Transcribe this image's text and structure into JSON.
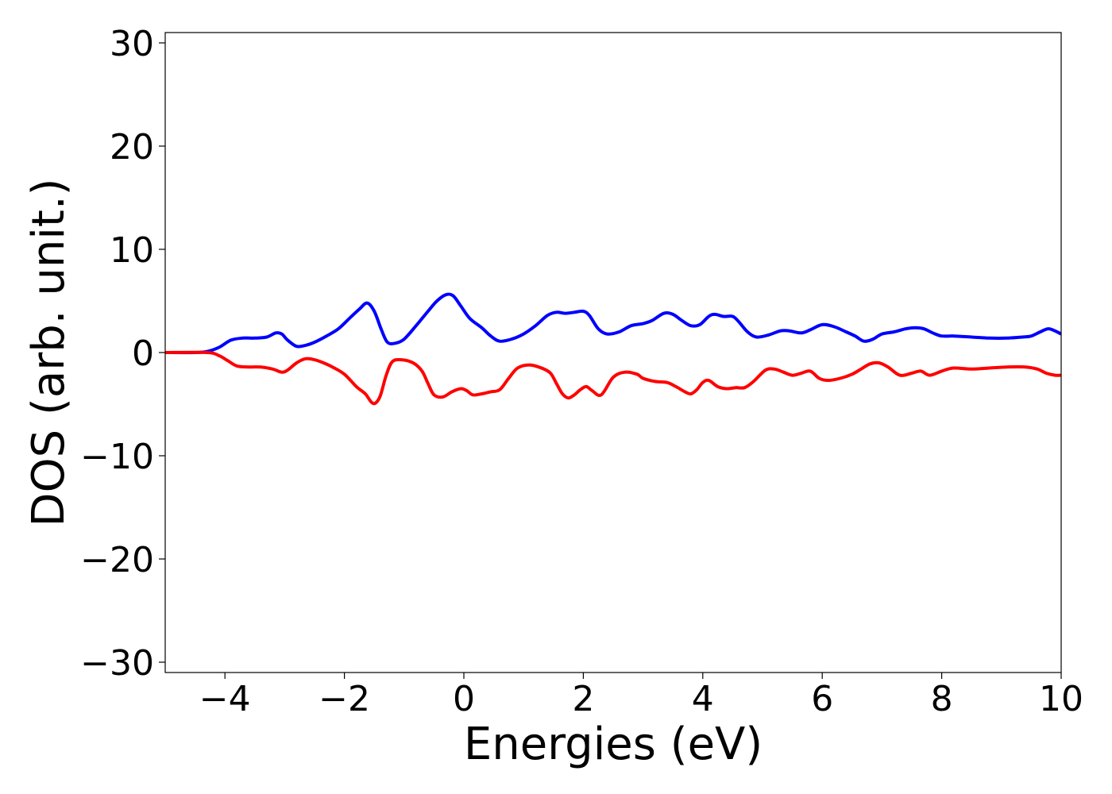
{
  "chart_data": {
    "type": "line",
    "title": "",
    "xlabel": "Energies (eV)",
    "ylabel": "DOS (arb. unit.)",
    "xlim": [
      -5,
      10
    ],
    "ylim": [
      -31,
      31
    ],
    "xticks": [
      -4,
      -2,
      0,
      2,
      4,
      6,
      8,
      10
    ],
    "xtick_labels": [
      "−4",
      "−2",
      "0",
      "2",
      "4",
      "6",
      "8",
      "10"
    ],
    "yticks": [
      -30,
      -20,
      -10,
      0,
      10,
      20,
      30
    ],
    "ytick_labels": [
      "−30",
      "−20",
      "−10",
      "0",
      "10",
      "20",
      "30"
    ],
    "grid": false,
    "legend": "none",
    "series": [
      {
        "color": "#0000ff",
        "x": [
          -5.0,
          -4.5,
          -4.3,
          -4.1,
          -3.9,
          -3.7,
          -3.5,
          -3.3,
          -3.15,
          -3.05,
          -2.95,
          -2.8,
          -2.65,
          -2.5,
          -2.3,
          -2.1,
          -1.9,
          -1.75,
          -1.62,
          -1.5,
          -1.38,
          -1.28,
          -1.15,
          -1.0,
          -0.8,
          -0.6,
          -0.45,
          -0.3,
          -0.18,
          -0.05,
          0.1,
          0.3,
          0.45,
          0.6,
          0.8,
          1.0,
          1.2,
          1.4,
          1.55,
          1.7,
          1.85,
          2.0,
          2.1,
          2.25,
          2.4,
          2.6,
          2.8,
          3.0,
          3.15,
          3.35,
          3.5,
          3.65,
          3.8,
          3.95,
          4.1,
          4.2,
          4.35,
          4.5,
          4.6,
          4.75,
          4.9,
          5.1,
          5.3,
          5.45,
          5.65,
          5.8,
          6.0,
          6.2,
          6.4,
          6.55,
          6.7,
          6.85,
          7.0,
          7.2,
          7.4,
          7.55,
          7.7,
          7.85,
          8.0,
          8.2,
          8.5,
          8.8,
          9.1,
          9.35,
          9.5,
          9.65,
          9.8,
          10.0
        ],
        "y": [
          0.0,
          0.0,
          0.1,
          0.5,
          1.2,
          1.4,
          1.4,
          1.5,
          1.9,
          1.8,
          1.2,
          0.6,
          0.7,
          1.0,
          1.6,
          2.3,
          3.4,
          4.2,
          4.8,
          4.0,
          2.2,
          1.0,
          0.9,
          1.3,
          2.6,
          4.0,
          5.0,
          5.6,
          5.5,
          4.5,
          3.3,
          2.4,
          1.6,
          1.1,
          1.3,
          1.8,
          2.6,
          3.6,
          3.9,
          3.8,
          3.9,
          4.0,
          3.6,
          2.3,
          1.8,
          2.0,
          2.6,
          2.8,
          3.1,
          3.8,
          3.7,
          3.1,
          2.6,
          2.7,
          3.5,
          3.7,
          3.5,
          3.5,
          3.0,
          2.0,
          1.5,
          1.7,
          2.1,
          2.1,
          1.9,
          2.2,
          2.7,
          2.5,
          2.0,
          1.6,
          1.1,
          1.3,
          1.8,
          2.0,
          2.3,
          2.4,
          2.3,
          1.9,
          1.6,
          1.6,
          1.5,
          1.4,
          1.4,
          1.5,
          1.6,
          2.0,
          2.3,
          1.8
        ]
      },
      {
        "color": "#ff0000",
        "x": [
          -5.0,
          -4.3,
          -4.1,
          -3.95,
          -3.8,
          -3.6,
          -3.4,
          -3.2,
          -3.05,
          -2.95,
          -2.8,
          -2.65,
          -2.5,
          -2.35,
          -2.2,
          -2.0,
          -1.8,
          -1.65,
          -1.55,
          -1.48,
          -1.4,
          -1.3,
          -1.2,
          -1.05,
          -0.85,
          -0.7,
          -0.6,
          -0.5,
          -0.35,
          -0.2,
          -0.05,
          0.05,
          0.15,
          0.3,
          0.45,
          0.6,
          0.75,
          0.9,
          1.1,
          1.3,
          1.45,
          1.55,
          1.65,
          1.75,
          1.85,
          1.95,
          2.05,
          2.15,
          2.3,
          2.5,
          2.7,
          2.9,
          3.0,
          3.2,
          3.4,
          3.55,
          3.7,
          3.8,
          3.9,
          4.0,
          4.1,
          4.25,
          4.4,
          4.55,
          4.7,
          4.85,
          5.05,
          5.2,
          5.35,
          5.5,
          5.65,
          5.8,
          5.95,
          6.1,
          6.3,
          6.5,
          6.65,
          6.8,
          6.95,
          7.1,
          7.3,
          7.5,
          7.65,
          7.8,
          8.0,
          8.2,
          8.5,
          8.8,
          9.1,
          9.4,
          9.6,
          9.75,
          9.9,
          10.0
        ],
        "y": [
          0.0,
          0.0,
          -0.3,
          -0.8,
          -1.3,
          -1.4,
          -1.4,
          -1.6,
          -1.9,
          -1.7,
          -1.0,
          -0.6,
          -0.7,
          -1.0,
          -1.4,
          -2.1,
          -3.3,
          -4.0,
          -4.8,
          -4.9,
          -4.2,
          -2.2,
          -0.9,
          -0.7,
          -1.0,
          -1.8,
          -3.0,
          -4.1,
          -4.3,
          -3.8,
          -3.5,
          -3.7,
          -4.1,
          -4.0,
          -3.8,
          -3.6,
          -2.5,
          -1.5,
          -1.2,
          -1.5,
          -2.0,
          -3.0,
          -4.0,
          -4.4,
          -4.1,
          -3.6,
          -3.3,
          -3.7,
          -4.1,
          -2.4,
          -1.9,
          -2.1,
          -2.5,
          -2.8,
          -2.9,
          -3.3,
          -3.8,
          -4.0,
          -3.6,
          -2.9,
          -2.7,
          -3.3,
          -3.5,
          -3.4,
          -3.4,
          -2.8,
          -1.7,
          -1.6,
          -1.9,
          -2.2,
          -2.0,
          -1.8,
          -2.5,
          -2.7,
          -2.5,
          -2.1,
          -1.6,
          -1.1,
          -1.0,
          -1.4,
          -2.2,
          -2.0,
          -1.8,
          -2.2,
          -1.8,
          -1.5,
          -1.6,
          -1.5,
          -1.4,
          -1.4,
          -1.6,
          -2.0,
          -2.2,
          -2.2
        ]
      }
    ]
  }
}
